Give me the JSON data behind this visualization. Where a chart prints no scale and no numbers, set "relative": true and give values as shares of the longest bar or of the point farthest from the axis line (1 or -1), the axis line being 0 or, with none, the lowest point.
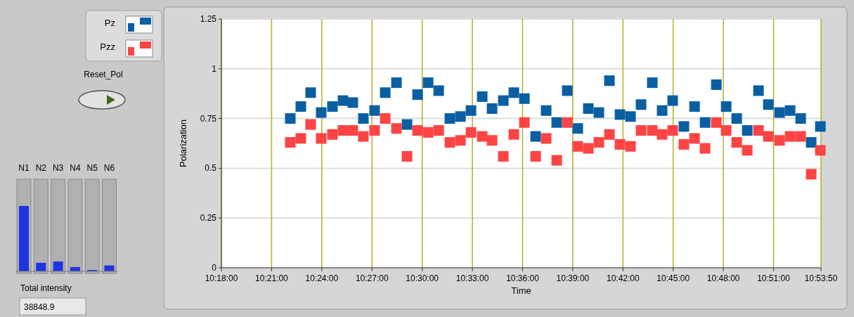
{
  "chart_data": [
    {
      "type": "scatter",
      "xlabel": "Time",
      "ylabel": "Polarization",
      "x": [
        10.3686,
        10.3791,
        10.3889,
        10.3994,
        10.4106,
        10.4211,
        10.4309,
        10.4414,
        10.4526,
        10.4632,
        10.4744,
        10.4849,
        10.4954,
        10.5059,
        10.5164,
        10.5276,
        10.5381,
        10.5486,
        10.5598,
        10.5696,
        10.5808,
        10.5913,
        10.6018,
        10.613,
        10.6235,
        10.634,
        10.6445,
        10.655,
        10.6655,
        10.676,
        10.6865,
        10.697,
        10.7075,
        10.718,
        10.7292,
        10.739,
        10.7495,
        10.7607,
        10.7713,
        10.7818,
        10.793,
        10.8028,
        10.8133,
        10.8238,
        10.835,
        10.8448,
        10.856,
        10.8665,
        10.877,
        10.8875,
        10.8966
      ],
      "series": [
        {
          "name": "Pz",
          "color": "#0a5fa3",
          "values": [
            0.75,
            0.81,
            0.88,
            0.78,
            0.81,
            0.84,
            0.83,
            0.75,
            0.79,
            0.88,
            0.93,
            0.72,
            0.87,
            0.93,
            0.89,
            0.75,
            0.76,
            0.79,
            0.86,
            0.8,
            0.84,
            0.88,
            0.85,
            0.66,
            0.79,
            0.73,
            0.89,
            0.7,
            0.8,
            0.78,
            0.94,
            0.77,
            0.76,
            0.82,
            0.93,
            0.79,
            0.84,
            0.71,
            0.81,
            0.73,
            0.92,
            0.81,
            0.75,
            0.69,
            0.89,
            0.82,
            0.78,
            0.79,
            0.75,
            0.63,
            0.71
          ]
        },
        {
          "name": "Pzz",
          "color": "#fd4444",
          "values": [
            0.63,
            0.65,
            0.72,
            0.65,
            0.67,
            0.69,
            0.69,
            0.66,
            0.69,
            0.75,
            0.7,
            0.56,
            0.69,
            0.68,
            0.69,
            0.63,
            0.64,
            0.68,
            0.66,
            0.64,
            0.56,
            0.67,
            0.73,
            0.56,
            0.65,
            0.54,
            0.73,
            0.61,
            0.6,
            0.63,
            0.67,
            0.62,
            0.61,
            0.69,
            0.69,
            0.67,
            0.69,
            0.62,
            0.65,
            0.6,
            0.73,
            0.69,
            0.63,
            0.59,
            0.69,
            0.66,
            0.64,
            0.66,
            0.66,
            0.47,
            0.59
          ]
        }
      ],
      "xlim": [
        10.3,
        10.89722
      ],
      "xticks": [
        {
          "value": 10.3,
          "label": "10:18:00"
        },
        {
          "value": 10.35,
          "label": "10:21:00"
        },
        {
          "value": 10.4,
          "label": "10:24:00"
        },
        {
          "value": 10.45,
          "label": "10:27:00"
        },
        {
          "value": 10.5,
          "label": "10:30:00"
        },
        {
          "value": 10.55,
          "label": "10:33:00"
        },
        {
          "value": 10.6,
          "label": "10:36:00"
        },
        {
          "value": 10.65,
          "label": "10:39:00"
        },
        {
          "value": 10.7,
          "label": "10:42:00"
        },
        {
          "value": 10.75,
          "label": "10:45:00"
        },
        {
          "value": 10.8,
          "label": "10:48:00"
        },
        {
          "value": 10.85,
          "label": "10:51:00"
        },
        {
          "value": 10.89722,
          "label": "10:53:50"
        }
      ],
      "ylim": [
        0,
        1.25
      ],
      "yticks": [
        0,
        0.25,
        0.5,
        0.75,
        1,
        1.25
      ],
      "grid": true,
      "legend": "top left",
      "marker": "square"
    },
    {
      "type": "bar",
      "relative": true,
      "categories": [
        "N1",
        "N2",
        "N3",
        "N4",
        "N5",
        "N6"
      ],
      "values": [
        1,
        0.13,
        0.15,
        0.065,
        0.02,
        0.09
      ],
      "color": "#1d35e0",
      "annotations": [
        "Reset_Pol",
        "Total intensity",
        "38848.9"
      ]
    }
  ]
}
